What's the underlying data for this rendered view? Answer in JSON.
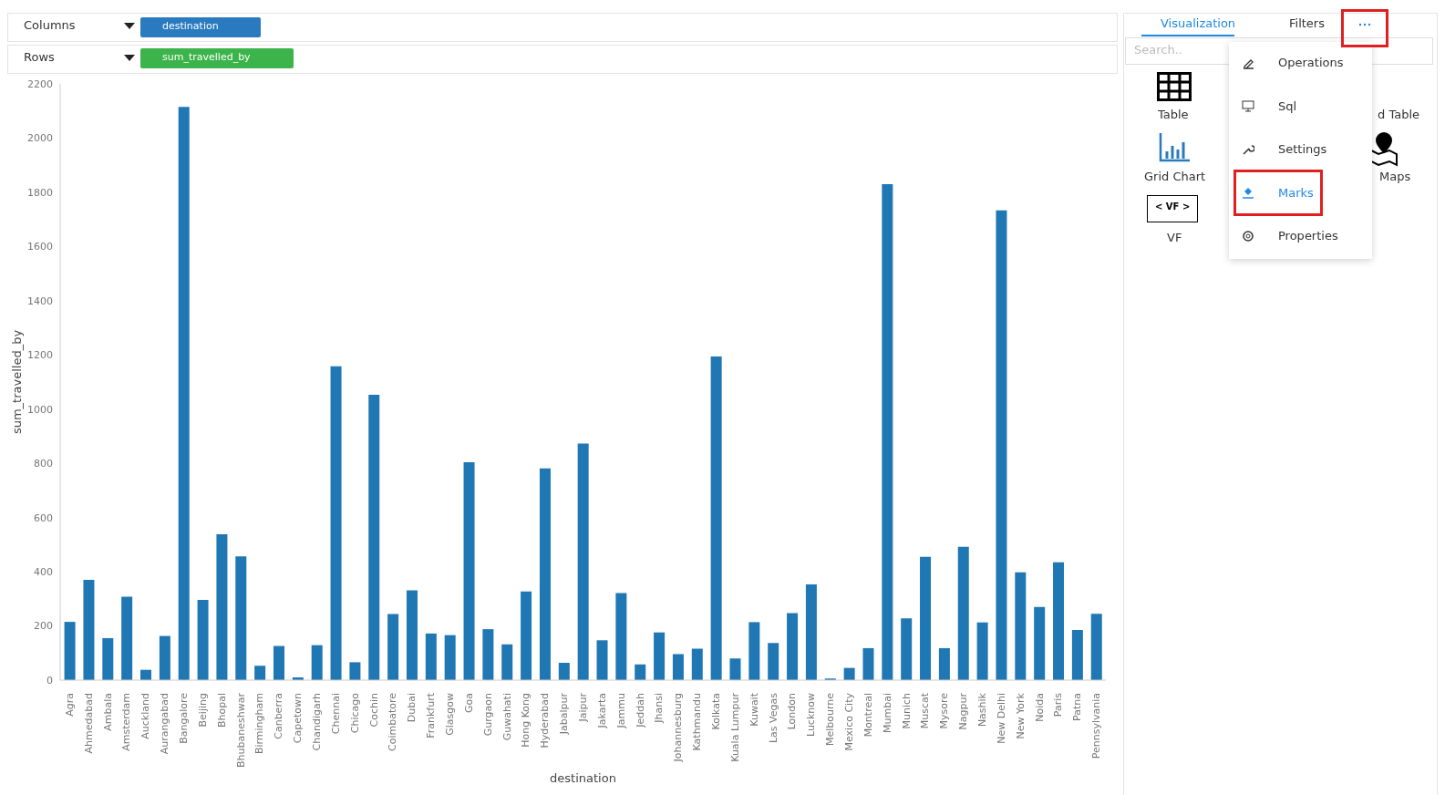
{
  "chart_data": {
    "type": "bar",
    "xlabel": "destination",
    "ylabel": "sum_travelled_by",
    "categories": [
      "Agra",
      "Ahmedabad",
      "Ambala",
      "Amsterdam",
      "Auckland",
      "Aurangabad",
      "Bangalore",
      "Beijing",
      "Bhopal",
      "Bhubaneshwar",
      "Birmingham",
      "Canberra",
      "Capetown",
      "Chandigarh",
      "Chennai",
      "Chicago",
      "Cochin",
      "Coimbatore",
      "Dubai",
      "Frankfurt",
      "Glasgow",
      "Goa",
      "Gurgaon",
      "Guwahati",
      "Hong Kong",
      "Hyderabad",
      "Jabalpur",
      "Jaipur",
      "Jakarta",
      "Jammu",
      "Jeddah",
      "Jhansi",
      "Johannesburg",
      "Kathmandu",
      "Kolkata",
      "Kuala Lumpur",
      "Kuwait",
      "Las Vegas",
      "London",
      "Lucknow",
      "Melbourne",
      "Mexico City",
      "Montreal",
      "Mumbai",
      "Munich",
      "Muscat",
      "Mysore",
      "Nagpur",
      "Nashik",
      "New Delhi",
      "New York",
      "Noida",
      "Paris",
      "Patna",
      "Pennsylvania"
    ],
    "values": [
      215,
      370,
      155,
      308,
      38,
      163,
      2115,
      296,
      538,
      457,
      53,
      126,
      10,
      129,
      1158,
      66,
      1053,
      244,
      331,
      172,
      166,
      804,
      188,
      132,
      327,
      781,
      64,
      873,
      147,
      321,
      58,
      176,
      96,
      116,
      1194,
      80,
      214,
      137,
      247,
      353,
      6,
      45,
      118,
      1830,
      228,
      455,
      118,
      492,
      213,
      1733,
      398,
      270,
      435,
      185,
      245
    ],
    "color": "#1f77b4",
    "ylim": [
      0,
      2200
    ],
    "yticks": [
      0,
      200,
      400,
      600,
      800,
      1000,
      1200,
      1400,
      1600,
      1800,
      2000,
      2200
    ],
    "grid": false,
    "annotations": [
      "Columns",
      "destination",
      "Rows",
      "sum_travelled_by",
      "Visualization",
      "Filters",
      "Search..",
      "Table",
      "Grid Chart",
      "< VF >",
      "VF",
      "d Table",
      "Maps",
      "Operations",
      "Sql",
      "Settings",
      "Marks",
      "Properties"
    ]
  }
}
